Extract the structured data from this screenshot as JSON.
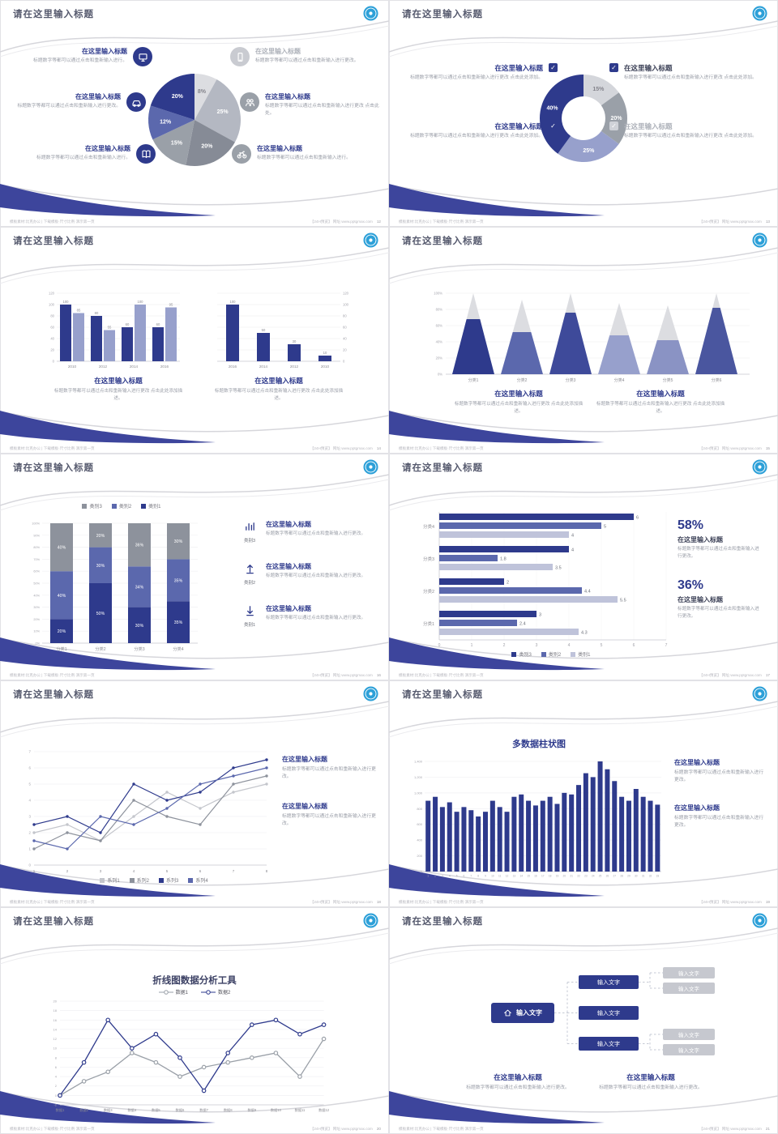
{
  "common": {
    "slide_title": "请在这里输入标题",
    "item_title": "在这里输入标题",
    "footer_left": "模板素材:比克办公 | 下载模板·尺寸比例·演示第一页",
    "footer_right": "【24H预览】 网址:www.pptgmax.com",
    "colors": {
      "navy": "#2e3a8c",
      "slate": "#5b68ad",
      "peri": "#97a0cc",
      "pale": "#c2c6dc",
      "gray": "#9aa0a8",
      "grayl": "#c9cbd1",
      "silver": "#dcdde1",
      "body": "#9a9ea8",
      "titled": "#3c4157"
    }
  },
  "slides": [
    {
      "page": "12",
      "kind": "pie_callouts",
      "chart_data": {
        "type": "pie",
        "slices": [
          {
            "label": "8%",
            "value": 8,
            "color": "#dcdde1"
          },
          {
            "label": "25%",
            "value": 25,
            "color": "#b4b8c2"
          },
          {
            "label": "20%",
            "value": 20,
            "color": "#868b96"
          },
          {
            "label": "15%",
            "value": 15,
            "color": "#9aa0a8"
          },
          {
            "label": "12%",
            "value": 12,
            "color": "#5b68ad"
          },
          {
            "label": "20%",
            "value": 20,
            "color": "#2e3a8c"
          }
        ]
      },
      "callouts_left": [
        {
          "icon": "monitor-icon",
          "icon_bg": "#2e3a8c",
          "title": "在这里输入标题",
          "title_color": "#2e3a8c",
          "body": "标题数字等都可以通过点击和重新输入进行。"
        },
        {
          "icon": "car-icon",
          "icon_bg": "#2e3a8c",
          "title": "在这里输入标题",
          "title_color": "#2e3a8c",
          "body": "标题数字等都可以通过点击和重新输入进行更改。"
        },
        {
          "icon": "book-icon",
          "icon_bg": "#2e3a8c",
          "title": "在这里输入标题",
          "title_color": "#2e3a8c",
          "body": "标题数字等都可以通过点击和重新输入进行。"
        }
      ],
      "callouts_right": [
        {
          "icon": "phone-icon",
          "icon_bg": "#c9cbd1",
          "title": "在这里输入标题",
          "title_color": "#aeb2ba",
          "body": "标题数字等都可以通过点击和重新输入进行更改。"
        },
        {
          "icon": "people-icon",
          "icon_bg": "#9aa0a8",
          "title": "在这里输入标题",
          "title_color": "#2e3a8c",
          "body": "标题数字等都可以通过点击和重新输入进行更改 点击此处。"
        },
        {
          "icon": "bike-icon",
          "icon_bg": "#9aa0a8",
          "title": "在这里输入标题",
          "title_color": "#2e3a8c",
          "body": "标题数字等都可以通过点击和重新输入进行。"
        }
      ]
    },
    {
      "page": "13",
      "kind": "donut_checks",
      "chart_data": {
        "type": "donut",
        "slices": [
          {
            "label": "15%",
            "value": 15,
            "color": "#d4d6db"
          },
          {
            "label": "20%",
            "value": 20,
            "color": "#9aa0a8"
          },
          {
            "label": "25%",
            "value": 25,
            "color": "#97a0cc"
          },
          {
            "label": "40%",
            "value": 40,
            "color": "#2e3a8c"
          }
        ]
      },
      "left_items": [
        {
          "title": "在这里输入标题",
          "title_color": "#2e3a8c",
          "check_color": "#2e3a8c",
          "body": "标题数字等都可以通过点击和重新输入进行更改 点击此处添加。"
        },
        {
          "title": "在这里输入标题",
          "title_color": "#2e3a8c",
          "check_color": "#2e3a8c",
          "body": "标题数字等都可以通过点击和重新输入进行更改 点击此处添加。"
        }
      ],
      "right_items": [
        {
          "title": "在这里输入标题",
          "title_color": "#3c4157",
          "check_color": "#2e3a8c",
          "body": "标题数字等都可以通过点击和重新输入进行更改 点击此处添加。"
        },
        {
          "title": "在这里输入标题",
          "title_color": "#aeb2ba",
          "check_color": "#cfd2d8",
          "body": "标题数字等都可以通过点击和重新输入进行更改 点击此处添加。"
        }
      ]
    },
    {
      "page": "14",
      "kind": "dual_bars",
      "chart_data": [
        {
          "type": "bar",
          "categories": [
            "2010",
            "2012",
            "2014",
            "2016"
          ],
          "ylim": [
            0,
            120
          ],
          "ytick_step": 20,
          "series": [
            {
              "name": "系列1",
              "color": "#2e3a8c",
              "values": [
                100,
                80,
                60,
                60
              ]
            },
            {
              "name": "系列2",
              "color": "#97a0cc",
              "values": [
                85,
                55,
                100,
                95
              ]
            }
          ]
        },
        {
          "type": "bar",
          "categories": [
            "2016",
            "2014",
            "2012",
            "2010"
          ],
          "ylim": [
            0,
            120
          ],
          "ytick_step": 20,
          "axis_right": true,
          "series": [
            {
              "name": "系列1",
              "color": "#2e3a8c",
              "values": [
                100,
                50,
                30,
                10
              ]
            }
          ]
        }
      ],
      "texts": [
        {
          "title": "在这里输入标题",
          "body": "标题数字等都可以通过点击和重新输入进行更改 点击此处添加描述。"
        },
        {
          "title": "在这里输入标题",
          "body": "标题数字等都可以通过点击和重新输入进行更改 点击此处添加描述。"
        }
      ]
    },
    {
      "page": "15",
      "kind": "pyramids",
      "chart_data": {
        "type": "pyramid",
        "ylim": [
          0,
          100
        ],
        "ytick_step": 20,
        "categories": [
          "分类1",
          "分类2",
          "分类3",
          "分类4",
          "分类5",
          "分类6"
        ],
        "total_pct": [
          100,
          92,
          100,
          88,
          85,
          100
        ],
        "filled_pct": [
          68,
          52,
          76,
          48,
          42,
          82
        ],
        "colors": [
          "#2e3a8c",
          "#5b68ad",
          "#3e4a9a",
          "#97a0cc",
          "#8a93c4",
          "#4a569f"
        ],
        "cap_color": "#dcdde1"
      },
      "texts": [
        {
          "title": "在这里输入标题",
          "body": "标题数字等都可以通过点击和重新输入进行更改 点击此处添加描述。"
        },
        {
          "title": "在这里输入标题",
          "body": "标题数字等都可以通过点击和重新输入进行更改 点击此处添加描述。"
        }
      ]
    },
    {
      "page": "16",
      "kind": "stacked",
      "chart_data": {
        "type": "stacked_bar",
        "ylim": [
          0,
          100
        ],
        "ytick_step": 10,
        "categories": [
          "分类1",
          "分类2",
          "分类3",
          "分类4"
        ],
        "series": [
          {
            "name": "类别1",
            "color": "#2e3a8c",
            "values": [
              20,
              50,
              30,
              35
            ]
          },
          {
            "name": "类别2",
            "color": "#5b68ad",
            "values": [
              40,
              30,
              34,
              35
            ]
          },
          {
            "name": "类别3",
            "color": "#8d929c",
            "values": [
              40,
              20,
              36,
              30
            ]
          }
        ],
        "legend": [
          "类别3",
          "类别2",
          "类别1"
        ]
      },
      "side_items": [
        {
          "icon": "bar-chart-icon",
          "tag": "类别3",
          "title": "在这里输入标题",
          "body": "标题数字等都可以通过点击和重新输入进行更改。"
        },
        {
          "icon": "arrow-up-icon",
          "tag": "类别2",
          "title": "在这里输入标题",
          "body": "标题数字等都可以通过点击和重新输入进行更改。"
        },
        {
          "icon": "arrow-down-icon",
          "tag": "类别1",
          "title": "在这里输入标题",
          "body": "标题数字等都可以通过点击和重新输入进行更改。"
        }
      ]
    },
    {
      "page": "17",
      "kind": "hbars",
      "chart_data": {
        "type": "hbar",
        "xlim": [
          0,
          7
        ],
        "categories": [
          "分类4",
          "分类3",
          "分类2",
          "分类1"
        ],
        "series": [
          {
            "name": "类别3",
            "color": "#2e3a8c",
            "values": [
              6,
              4,
              2,
              3
            ]
          },
          {
            "name": "类别2",
            "color": "#5b68ad",
            "values": [
              5,
              1.8,
              4.4,
              2.4
            ]
          },
          {
            "name": "类别1",
            "color": "#bfc3da",
            "values": [
              4,
              3.5,
              5.5,
              4.3
            ]
          }
        ]
      },
      "stats": [
        {
          "pct": "58%",
          "title": "在这里输入标题",
          "body": "标题数字等都可以通过点击和重新输入进行更改。"
        },
        {
          "pct": "36%",
          "title": "在这里输入标题",
          "body": "标题数字等都可以通过点击和重新输入进行更改。"
        }
      ]
    },
    {
      "page": "18",
      "kind": "multi_line",
      "chart_data": {
        "type": "line",
        "x": [
          1,
          2,
          3,
          4,
          5,
          6,
          7,
          8
        ],
        "ylim": [
          0,
          7
        ],
        "series": [
          {
            "name": "系列1",
            "color": "#c4c6cc",
            "values": [
              2,
              2.5,
              1.5,
              3,
              4.5,
              3.5,
              4.5,
              5
            ]
          },
          {
            "name": "系列2",
            "color": "#8d929c",
            "values": [
              1,
              2,
              1.5,
              4,
              3,
              2.5,
              5,
              5.5
            ]
          },
          {
            "name": "系列3",
            "color": "#2e3a8c",
            "values": [
              2.5,
              3,
              2,
              5,
              4,
              4.5,
              6,
              6.5
            ]
          },
          {
            "name": "系列4",
            "color": "#5b68ad",
            "values": [
              1.5,
              1,
              3,
              2.5,
              3.5,
              5,
              5.5,
              6
            ]
          }
        ]
      },
      "texts": [
        {
          "title": "在这里输入标题",
          "body": "标题数字等都可以通过点击和重新输入进行更改。"
        },
        {
          "title": "在这里输入标题",
          "body": "标题数字等都可以通过点击和重新输入进行更改。"
        }
      ]
    },
    {
      "page": "19",
      "kind": "many_bars",
      "chart_data": {
        "type": "bar",
        "title": "多数据柱状图",
        "ylim": [
          0,
          1400
        ],
        "ytick_step": 200,
        "color": "#2e3a8c",
        "x_labels": [
          "1",
          "2",
          "3",
          "4",
          "5",
          "6",
          "7",
          "8",
          "9",
          "10",
          "11",
          "12",
          "13",
          "14",
          "15",
          "16",
          "17",
          "18",
          "19",
          "20",
          "21",
          "22",
          "23",
          "24",
          "25",
          "26",
          "27",
          "28",
          "29",
          "30",
          "31",
          "32",
          "33"
        ],
        "values": [
          900,
          950,
          820,
          880,
          760,
          820,
          780,
          700,
          760,
          900,
          820,
          760,
          950,
          980,
          900,
          840,
          900,
          950,
          860,
          1000,
          980,
          1100,
          1250,
          1200,
          1400,
          1300,
          1150,
          950,
          900,
          1050,
          950,
          900,
          850
        ]
      },
      "texts": [
        {
          "title": "在这里输入标题",
          "body": "标题数字等都可以通过点击和重新输入进行更改。"
        },
        {
          "title": "在这里输入标题",
          "body": "标题数字等都可以通过点击和重新输入进行更改。"
        }
      ]
    },
    {
      "page": "20",
      "kind": "line_tool",
      "chart_data": {
        "type": "line",
        "title": "折线图数据分析工具",
        "ylim": [
          -2,
          20
        ],
        "ytick_step": 2,
        "x_labels": [
          "数据1",
          "数据2",
          "数据3",
          "数据4",
          "数据5",
          "数据6",
          "数据7",
          "数据8",
          "数据9",
          "数据10",
          "数据11",
          "数据12"
        ],
        "series": [
          {
            "name": "数据1",
            "color": "#9aa0a8",
            "values": [
              0,
              3,
              5,
              9,
              7,
              4,
              6,
              7,
              8,
              9,
              4,
              12
            ]
          },
          {
            "name": "数据2",
            "color": "#2e3a8c",
            "values": [
              0,
              7,
              16,
              10,
              13,
              8,
              1,
              9,
              15,
              16,
              13,
              15
            ]
          }
        ]
      }
    },
    {
      "page": "21",
      "kind": "flow",
      "flow": {
        "root_label": "输入文字",
        "root_icon": "home-icon",
        "mains": [
          "输入文字",
          "输入文字",
          "输入文字"
        ],
        "leaves": [
          "输入文字",
          "输入文字",
          "输入文字",
          "输入文字"
        ]
      },
      "texts": [
        {
          "title": "在这里输入标题",
          "body": "标题数字等都可以通过点击和重新输入进行更改。"
        },
        {
          "title": "在这里输入标题",
          "body": "标题数字等都可以通过点击和重新输入进行更改。"
        }
      ]
    }
  ]
}
